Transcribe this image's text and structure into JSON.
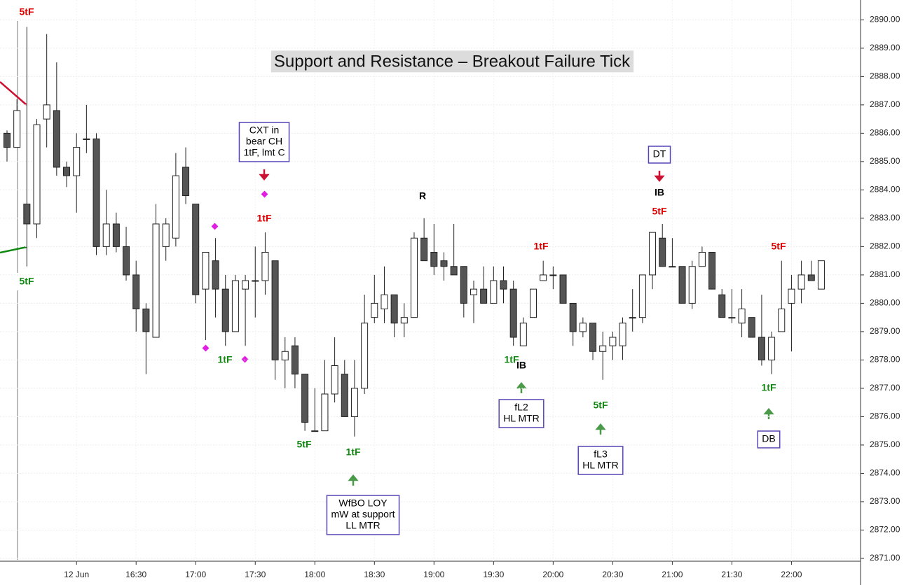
{
  "chart_data": {
    "type": "candlestick",
    "title": "Support and Resistance – Breakout Failure Tick",
    "categories": [
      null,
      null,
      null,
      null,
      null,
      null,
      null,
      "12 Jun",
      null,
      null,
      null,
      null,
      null,
      "16:30",
      null,
      null,
      null,
      null,
      null,
      "17:00",
      null,
      null,
      null,
      null,
      null,
      "17:30",
      null,
      null,
      null,
      null,
      null,
      "18:00",
      null,
      null,
      null,
      null,
      null,
      "18:30",
      null,
      null,
      null,
      null,
      null,
      "19:00",
      null,
      null,
      null,
      null,
      null,
      "19:30",
      null,
      null,
      null,
      null,
      null,
      "20:00",
      null,
      null,
      null,
      null,
      null,
      "20:30",
      null,
      null,
      null,
      null,
      null,
      "21:00",
      null,
      null,
      null,
      null,
      null,
      "21:30",
      null,
      null,
      null,
      null,
      null,
      "22:00",
      null,
      null,
      null
    ],
    "open": [
      2886.0,
      2885.5,
      2883.5,
      2882.8,
      2886.5,
      2886.8,
      2884.8,
      2884.5,
      2885.8,
      2885.8,
      2882.0,
      2882.8,
      2882.0,
      2881.0,
      2879.8,
      2878.8,
      2882.0,
      2882.3,
      2884.8,
      2883.5,
      2880.5,
      2881.5,
      2880.5,
      2879.0,
      2880.5,
      2880.8,
      2880.8,
      2881.5,
      2878.0,
      2878.5,
      2877.5,
      2875.5,
      2875.5,
      2876.8,
      2877.5,
      2876.0,
      2877.0,
      2879.5,
      2879.8,
      2880.3,
      2879.3,
      2879.5,
      2882.3,
      2881.8,
      2881.5,
      2881.3,
      2881.3,
      2880.3,
      2880.5,
      2880.0,
      2880.8,
      2880.5,
      2878.5,
      2879.5,
      2880.8,
      2881.0,
      2881.0,
      2880.0,
      2879.0,
      2879.3,
      2878.3,
      2878.5,
      2878.5,
      2879.5,
      2879.5,
      2881.0,
      2882.3,
      2881.3,
      2881.3,
      2880.0,
      2881.3,
      2881.8,
      2880.3,
      2879.5,
      2879.3,
      2879.5,
      2878.8,
      2878.0,
      2879.0,
      2880.0,
      2880.5,
      2881.0,
      2880.5
    ],
    "high": [
      2886.1,
      2887.2,
      2889.75,
      2886.5,
      2889.5,
      2888.5,
      2885.0,
      2886.0,
      2887.0,
      2886.0,
      2884.0,
      2883.2,
      2882.7,
      2881.5,
      2880.0,
      2883.5,
      2883.0,
      2885.3,
      2885.5,
      2883.5,
      2881.8,
      2882.3,
      2881.0,
      2881.0,
      2881.0,
      2882.0,
      2882.5,
      2881.5,
      2878.8,
      2878.8,
      2877.5,
      2877.0,
      2878.0,
      2878.8,
      2878.0,
      2878.0,
      2880.3,
      2881.0,
      2881.3,
      2880.3,
      2880.0,
      2882.5,
      2883.0,
      2882.8,
      2881.8,
      2882.8,
      2881.3,
      2880.8,
      2881.3,
      2881.3,
      2881.3,
      2880.8,
      2879.5,
      2880.5,
      2881.5,
      2881.3,
      2881.0,
      2880.0,
      2879.5,
      2879.3,
      2879.0,
      2879.0,
      2879.5,
      2880.5,
      2881.0,
      2882.5,
      2882.8,
      2882.3,
      2881.3,
      2881.5,
      2882.0,
      2881.8,
      2880.5,
      2880.5,
      2880.5,
      2879.5,
      2880.3,
      2879.0,
      2881.5,
      2881.0,
      2881.5,
      2881.5,
      2881.5
    ],
    "low": [
      2885.0,
      2885.5,
      2881.3,
      2882.3,
      2885.5,
      2884.5,
      2884.1,
      2883.2,
      2885.3,
      2881.7,
      2881.7,
      2881.8,
      2880.8,
      2879.0,
      2877.5,
      2878.8,
      2881.5,
      2882.0,
      2883.5,
      2880.0,
      2878.7,
      2879.5,
      2878.5,
      2879.0,
      2878.5,
      2879.5,
      2880.3,
      2877.3,
      2877.0,
      2877.0,
      2875.5,
      2875.5,
      2875.5,
      2876.5,
      2876.0,
      2875.3,
      2876.8,
      2879.3,
      2879.3,
      2878.8,
      2878.8,
      2879.5,
      2881.5,
      2881.0,
      2880.8,
      2881.0,
      2879.5,
      2879.3,
      2880.0,
      2880.0,
      2880.0,
      2878.5,
      2878.5,
      2879.5,
      2880.8,
      2880.5,
      2880.0,
      2878.5,
      2878.8,
      2878.0,
      2877.3,
      2878.0,
      2878.0,
      2879.0,
      2879.3,
      2880.5,
      2881.3,
      2881.3,
      2880.0,
      2879.8,
      2881.3,
      2880.5,
      2879.5,
      2879.3,
      2878.8,
      2878.8,
      2877.8,
      2877.5,
      2879.0,
      2878.3,
      2880.0,
      2880.8,
      2880.5
    ],
    "close": [
      2885.5,
      2886.8,
      2882.8,
      2886.3,
      2887.0,
      2884.8,
      2884.5,
      2885.5,
      2885.8,
      2882.0,
      2882.8,
      2882.0,
      2881.0,
      2879.8,
      2879.0,
      2882.8,
      2882.8,
      2884.5,
      2883.8,
      2880.3,
      2881.8,
      2880.5,
      2879.0,
      2880.8,
      2880.8,
      2880.8,
      2881.8,
      2878.0,
      2878.3,
      2877.5,
      2875.8,
      2875.5,
      2876.8,
      2877.8,
      2876.0,
      2877.0,
      2879.3,
      2880.0,
      2880.3,
      2879.3,
      2879.5,
      2882.3,
      2881.5,
      2881.3,
      2881.3,
      2881.0,
      2880.0,
      2880.5,
      2880.0,
      2880.8,
      2880.5,
      2878.8,
      2879.3,
      2880.5,
      2881.0,
      2881.0,
      2880.0,
      2879.0,
      2879.3,
      2878.3,
      2878.5,
      2878.8,
      2879.3,
      2879.5,
      2881.0,
      2882.5,
      2881.3,
      2881.3,
      2880.0,
      2881.3,
      2881.8,
      2880.5,
      2879.5,
      2879.5,
      2879.8,
      2878.8,
      2878.0,
      2878.8,
      2879.8,
      2880.5,
      2881.0,
      2880.8,
      2881.5
    ],
    "up_color": "#ffffff",
    "down_color": "#555555",
    "ylim": [
      2870.9,
      2890.7
    ],
    "yticks": [
      {
        "value": 2871,
        "label": "2871.00"
      },
      {
        "value": 2872,
        "label": "2872.00"
      },
      {
        "value": 2873,
        "label": "2873.00"
      },
      {
        "value": 2874,
        "label": "2874.00"
      },
      {
        "value": 2875,
        "label": "2875.00"
      },
      {
        "value": 2876,
        "label": "2876.00"
      },
      {
        "value": 2877,
        "label": "2877.00"
      },
      {
        "value": 2878,
        "label": "2878.00"
      },
      {
        "value": 2879,
        "label": "2879.00"
      },
      {
        "value": 2880,
        "label": "2880.00"
      },
      {
        "value": 2881,
        "label": "2881.00"
      },
      {
        "value": 2882,
        "label": "2882.00"
      },
      {
        "value": 2883,
        "label": "2883.00"
      },
      {
        "value": 2884,
        "label": "2884.00"
      },
      {
        "value": 2885,
        "label": "2885.00"
      },
      {
        "value": 2886,
        "label": "2886.00"
      },
      {
        "value": 2887,
        "label": "2887.00"
      },
      {
        "value": 2888,
        "label": "2888.00"
      },
      {
        "value": 2889,
        "label": "2889.00"
      },
      {
        "value": 2890,
        "label": "2890.00"
      }
    ],
    "grid": true,
    "annotations": [
      {
        "text": [
          "5tF"
        ],
        "color": "#e00000"
      },
      {
        "text": [
          "5tF"
        ],
        "color": "#118811"
      },
      {
        "text": [
          "1tF"
        ],
        "color": "#e00000"
      },
      {
        "text": [
          "1tF"
        ],
        "color": "#118811"
      },
      {
        "text": [
          "5tF"
        ],
        "color": "#118811"
      },
      {
        "text": [
          "1tF"
        ],
        "color": "#118811"
      },
      {
        "text": [
          "R"
        ],
        "color": "#000000"
      },
      {
        "text": [
          "1tF"
        ],
        "color": "#e00000"
      },
      {
        "text": [
          "1tF"
        ],
        "color": "#118811"
      },
      {
        "text": [
          "IB"
        ],
        "color": "#000000"
      },
      {
        "text": [
          "5tF"
        ],
        "color": "#118811"
      },
      {
        "text": [
          "IB"
        ],
        "color": "#000000"
      },
      {
        "text": [
          "5tF"
        ],
        "color": "#e00000"
      },
      {
        "text": [
          "5tF"
        ],
        "color": "#e00000"
      },
      {
        "text": [
          "1tF"
        ],
        "color": "#118811"
      },
      {
        "text": [
          "CXT in",
          "bear CH",
          "1tF, lmt C"
        ],
        "color": "#000000"
      },
      {
        "text": [
          "WfBO LOY",
          "mW at support",
          "LL MTR"
        ],
        "color": "#000000"
      },
      {
        "text": [
          "fL2",
          "HL MTR"
        ],
        "color": "#000000"
      },
      {
        "text": [
          "fL3",
          "HL MTR"
        ],
        "color": "#000000"
      },
      {
        "text": [
          "DT"
        ],
        "color": "#000000"
      },
      {
        "text": [
          "DB"
        ],
        "color": "#000000"
      }
    ]
  }
}
